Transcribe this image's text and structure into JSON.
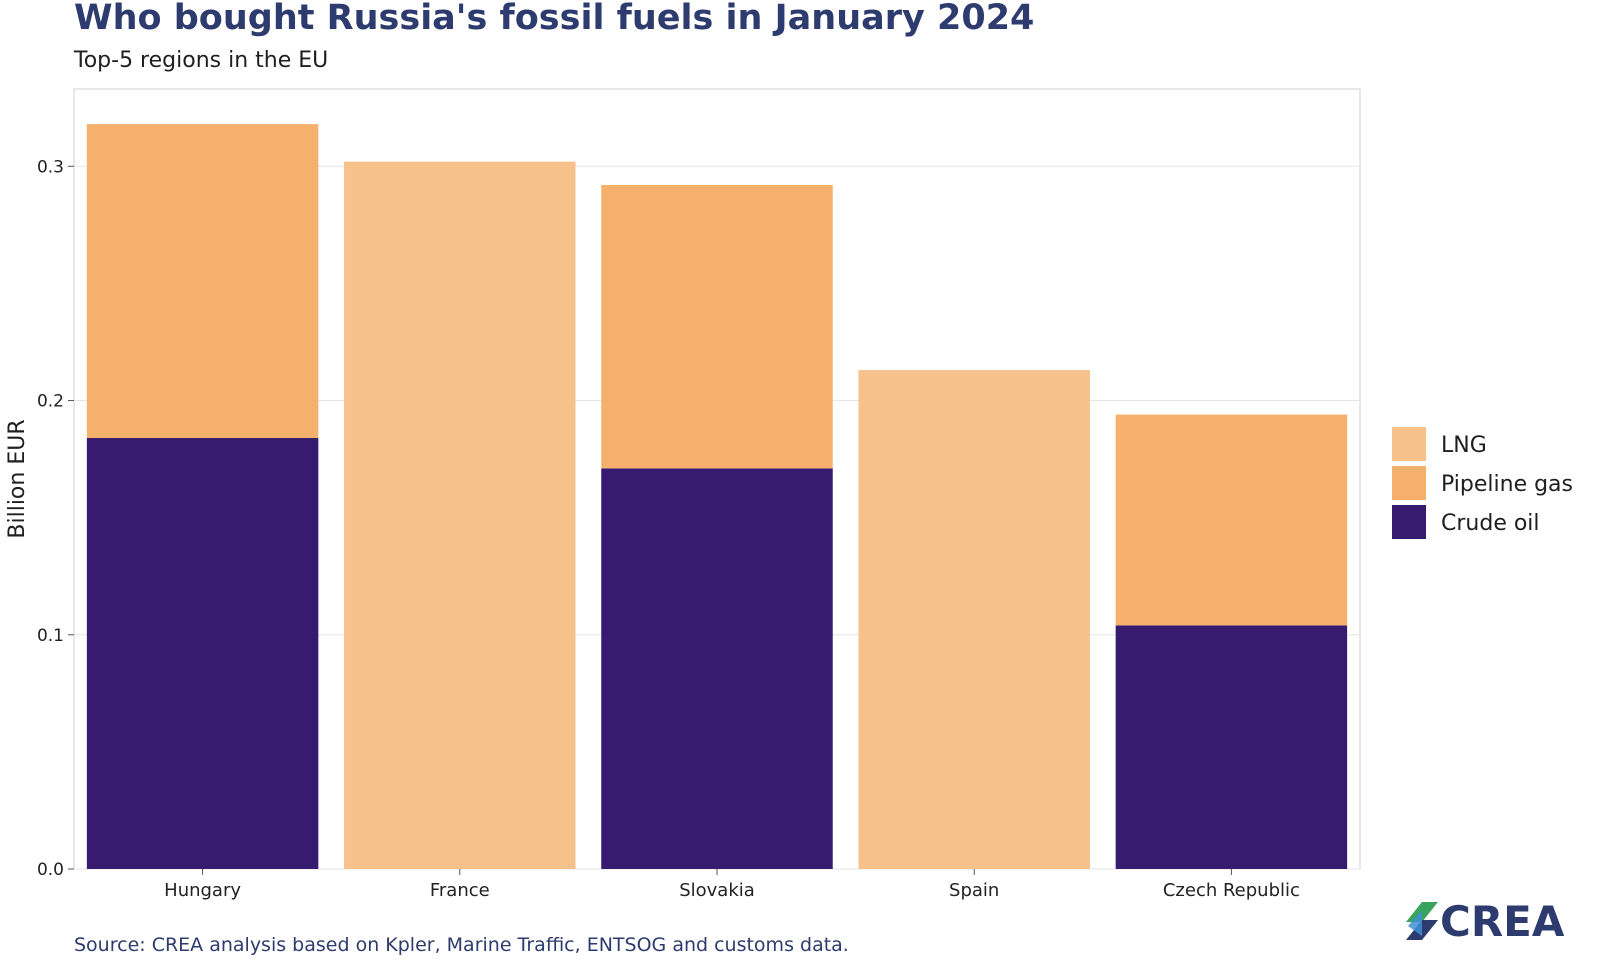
{
  "chart_data": {
    "type": "bar",
    "stacked": true,
    "title": "Who bought Russia's fossil fuels in January 2024",
    "subtitle": "Top-5 regions in the EU",
    "ylabel": "Billion EUR",
    "xlabel": "",
    "categories": [
      "Hungary",
      "France",
      "Slovakia",
      "Spain",
      "Czech Republic"
    ],
    "series": [
      {
        "name": "Crude oil",
        "color": "#361b70",
        "values": [
          0.184,
          0,
          0.171,
          0,
          0.104
        ]
      },
      {
        "name": "Pipeline gas",
        "color": "#f5b06c",
        "values": [
          0.134,
          0,
          0.121,
          0,
          0.09
        ]
      },
      {
        "name": "LNG",
        "color": "#f7c18c",
        "values": [
          0,
          0.302,
          0,
          0.213,
          0
        ]
      }
    ],
    "legend_order": [
      "LNG",
      "Pipeline gas",
      "Crude oil"
    ],
    "legend_position": "right",
    "ylim": [
      0,
      0.333
    ],
    "yticks": [
      0.0,
      0.1,
      0.2,
      0.3
    ],
    "ytick_labels": [
      "0.0",
      "0.1",
      "0.2",
      "0.3"
    ],
    "grid": true
  },
  "source": "Source: CREA analysis based on Kpler, Marine Traffic, ENTSOG and customs data.",
  "logo": {
    "text": "CREA"
  }
}
